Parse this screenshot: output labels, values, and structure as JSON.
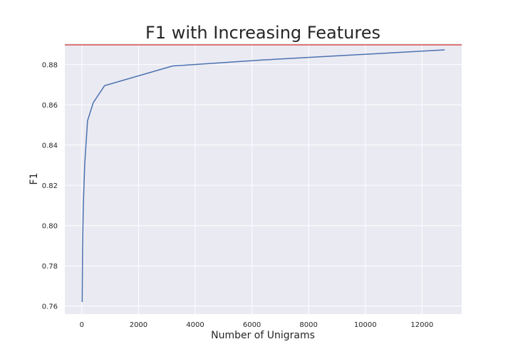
{
  "chart_data": {
    "type": "line",
    "title": "F1 with Increasing Features",
    "xlabel": "Number of Unigrams",
    "ylabel": "F1",
    "xlim": [
      -600,
      13400
    ],
    "ylim": [
      0.756,
      0.8905
    ],
    "grid": true,
    "xticks": [
      0,
      2000,
      4000,
      6000,
      8000,
      10000,
      12000
    ],
    "yticks": [
      0.76,
      0.78,
      0.8,
      0.82,
      0.84,
      0.86,
      0.88
    ],
    "ytick_labels": [
      "0.76",
      "0.78",
      "0.80",
      "0.82",
      "0.84",
      "0.86",
      "0.88"
    ],
    "series": [
      {
        "color": "#4c72b0",
        "x": [
          12,
          25,
          50,
          100,
          200,
          400,
          800,
          3200,
          6400,
          12800
        ],
        "y": [
          0.762,
          0.789,
          0.809,
          0.83,
          0.852,
          0.861,
          0.8695,
          0.8793,
          0.8823,
          0.8873
        ]
      }
    ],
    "reference_line": {
      "y": 0.8898,
      "color": "#d9534f"
    }
  },
  "style": {
    "plot_background": "#eaeaf2",
    "grid_color": "#ffffff"
  }
}
